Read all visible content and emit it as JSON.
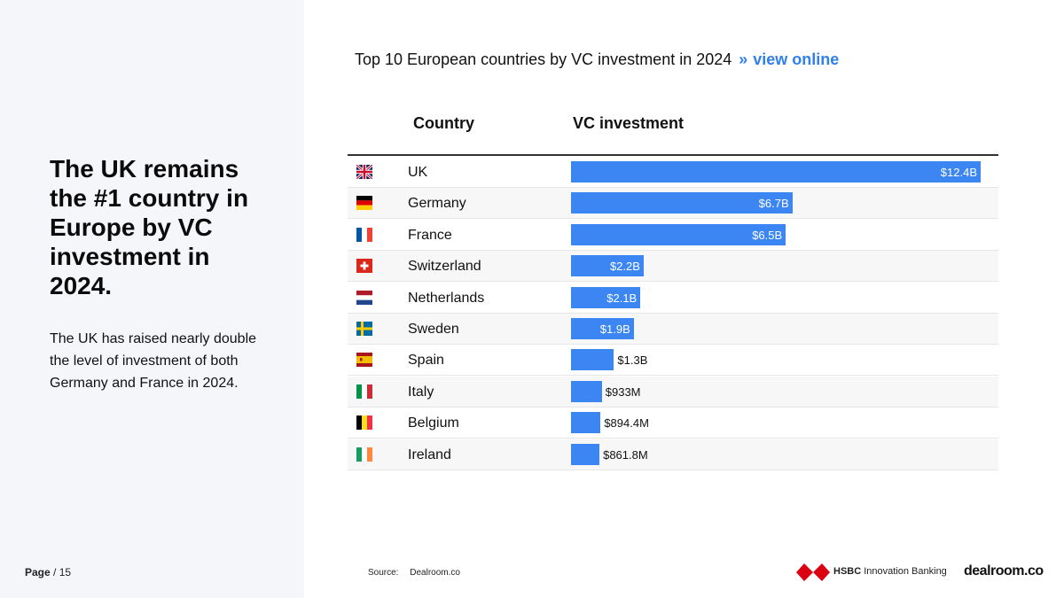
{
  "left": {
    "headline": "The UK remains the #1 country in Europe by VC investment in 2024.",
    "body": "The UK has raised nearly double the level of investment of both Germany and France in 2024.",
    "page_label": "Page",
    "page_total": "/ 15"
  },
  "chart_title": {
    "text": "Top 10 European countries by VC investment in 2024",
    "separator": "»",
    "link": "view online"
  },
  "table_headers": {
    "country": "Country",
    "investment": "VC investment"
  },
  "chart_data": {
    "type": "bar",
    "orientation": "horizontal",
    "title": "Top 10 European countries by VC investment in 2024",
    "categories": [
      "UK",
      "Germany",
      "France",
      "Switzerland",
      "Netherlands",
      "Sweden",
      "Spain",
      "Italy",
      "Belgium",
      "Ireland"
    ],
    "values": [
      12.4,
      6.7,
      6.5,
      2.2,
      2.1,
      1.9,
      1.3,
      0.933,
      0.8944,
      0.8618
    ],
    "value_labels": [
      "$12.4B",
      "$6.7B",
      "$6.5B",
      "$2.2B",
      "$2.1B",
      "$1.9B",
      "$1.3B",
      "$933M",
      "$894.4M",
      "$861.8M"
    ],
    "unit": "USD billions",
    "xlim": [
      0,
      12.4
    ],
    "bar_color": "#3b86f2"
  },
  "flags": [
    "flag-uk-icon",
    "flag-germany-icon",
    "flag-france-icon",
    "flag-switzerland-icon",
    "flag-netherlands-icon",
    "flag-sweden-icon",
    "flag-spain-icon",
    "flag-italy-icon",
    "flag-belgium-icon",
    "flag-ireland-icon"
  ],
  "footer": {
    "source_label": "Source:",
    "source_value": "Dealroom.co",
    "hsbc_bold": "HSBC",
    "hsbc_rest": "Innovation Banking",
    "dealroom": "dealroom.co"
  }
}
